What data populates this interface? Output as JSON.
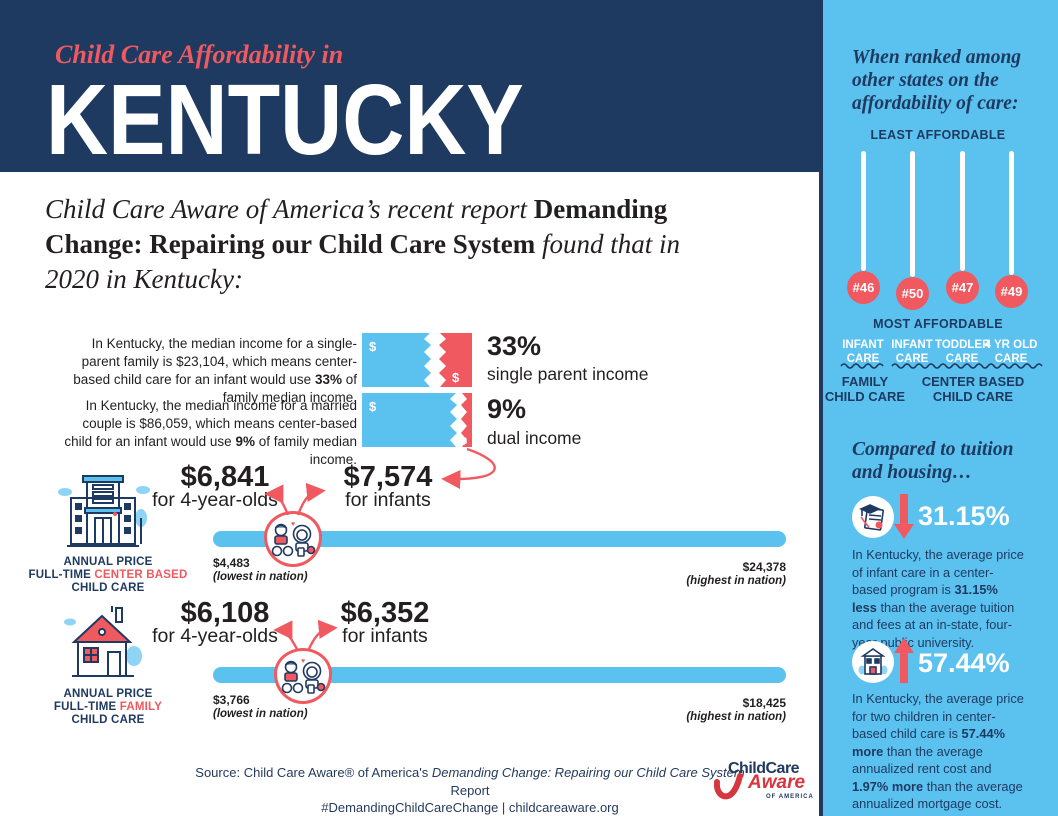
{
  "header": {
    "kicker": "Child Care Affordability in",
    "state": "KENTUCKY"
  },
  "intro_segments": [
    {
      "t": "Child Care Aware of America’s recent report ",
      "i": true
    },
    {
      "t": "Demanding Change: Repairing our Child Care System",
      "b": true
    },
    {
      "t": " found that in 2020 in Kentucky:",
      "i": true
    }
  ],
  "income_stats": [
    {
      "text_segments": [
        {
          "t": "In Kentucky, the median income for a single-parent family is $23,104, which means center-based child care for an infant would use "
        },
        {
          "t": "33%",
          "b": true
        },
        {
          "t": " of family median income."
        }
      ],
      "pct": "33%",
      "pct_label": "single parent income",
      "bill_dollar": "$",
      "torn_dollar": "$"
    },
    {
      "text_segments": [
        {
          "t": "In Kentucky, the median income for a married couple is $86,059, which means center-based child for an infant would use "
        },
        {
          "t": "9%",
          "b": true
        },
        {
          "t": " of family median income."
        }
      ],
      "pct": "9%",
      "pct_label": "dual income",
      "bill_dollar": "$",
      "torn_dollar": "$"
    }
  ],
  "price_rows": [
    {
      "price_4yr": "$6,841",
      "price_4yr_label": "for 4-year-olds",
      "price_infant": "$7,574",
      "price_infant_label": "for infants",
      "low": "$4,483",
      "low_note": "(lowest in nation)",
      "high": "$24,378",
      "high_note": "(highest in nation)",
      "category_segments": [
        {
          "t": "ANNUAL PRICE\nFULL-TIME "
        },
        {
          "t": "CENTER BASED",
          "hl": true
        },
        {
          "t": "\nCHILD CARE"
        }
      ]
    },
    {
      "price_4yr": "$6,108",
      "price_4yr_label": "for 4-year-olds",
      "price_infant": "$6,352",
      "price_infant_label": "for infants",
      "low": "$3,766",
      "low_note": "(lowest in nation)",
      "high": "$18,425",
      "high_note": "(highest in nation)",
      "category_segments": [
        {
          "t": "ANNUAL PRICE\nFULL-TIME "
        },
        {
          "t": "FAMILY",
          "hl": true
        },
        {
          "t": "\nCHILD CARE"
        }
      ]
    }
  ],
  "source": {
    "line1_segments": [
      {
        "t": "Source: Child Care Aware® of America's "
      },
      {
        "t": "Demanding Change: Repairing our Child Care System",
        "i": true
      },
      {
        "t": " Report"
      }
    ],
    "line2": "#DemandingChildCareChange | childcareaware.org"
  },
  "logo": {
    "part1": "ChildCare",
    "part2": "Aware",
    "part3": "OF AMERICA"
  },
  "sidebar": {
    "heading": "When ranked among other states on the affordability of care:",
    "least_label": "LEAST AFFORDABLE",
    "most_label": "MOST AFFORDABLE",
    "rankings": [
      {
        "rank": "#46",
        "care": "INFANT\nCARE"
      },
      {
        "rank": "#50",
        "care": "INFANT\nCARE"
      },
      {
        "rank": "#47",
        "care": "TODDLER\nCARE"
      },
      {
        "rank": "#49",
        "care": "4 YR OLD\nCARE"
      }
    ],
    "group_labels": [
      {
        "label": "FAMILY\nCHILD CARE"
      },
      {
        "label": "CENTER BASED\nCHILD CARE"
      }
    ],
    "compare_heading": "Compared to tuition and housing…",
    "stats": [
      {
        "value": "31.15%",
        "direction": "down",
        "text_segments": [
          {
            "t": "In Kentucky, the average price of infant care in a center-based program is "
          },
          {
            "t": "31.15% less",
            "b": true
          },
          {
            "t": " than the average tuition and fees at an in-state, four-year public university."
          }
        ]
      },
      {
        "value": "57.44%",
        "direction": "up",
        "text_segments": [
          {
            "t": "In Kentucky, the average price for two children in center-based child care is "
          },
          {
            "t": "57.44% more",
            "b": true
          },
          {
            "t": " than the average annualized rent cost and "
          },
          {
            "t": "1.97% more",
            "b": true
          },
          {
            "t": " than the average annualized mortgage cost."
          }
        ]
      }
    ]
  },
  "colors": {
    "navy": "#1f3a61",
    "coral": "#f0595f",
    "light_blue": "#5bc2f0",
    "ink": "#231f20"
  }
}
